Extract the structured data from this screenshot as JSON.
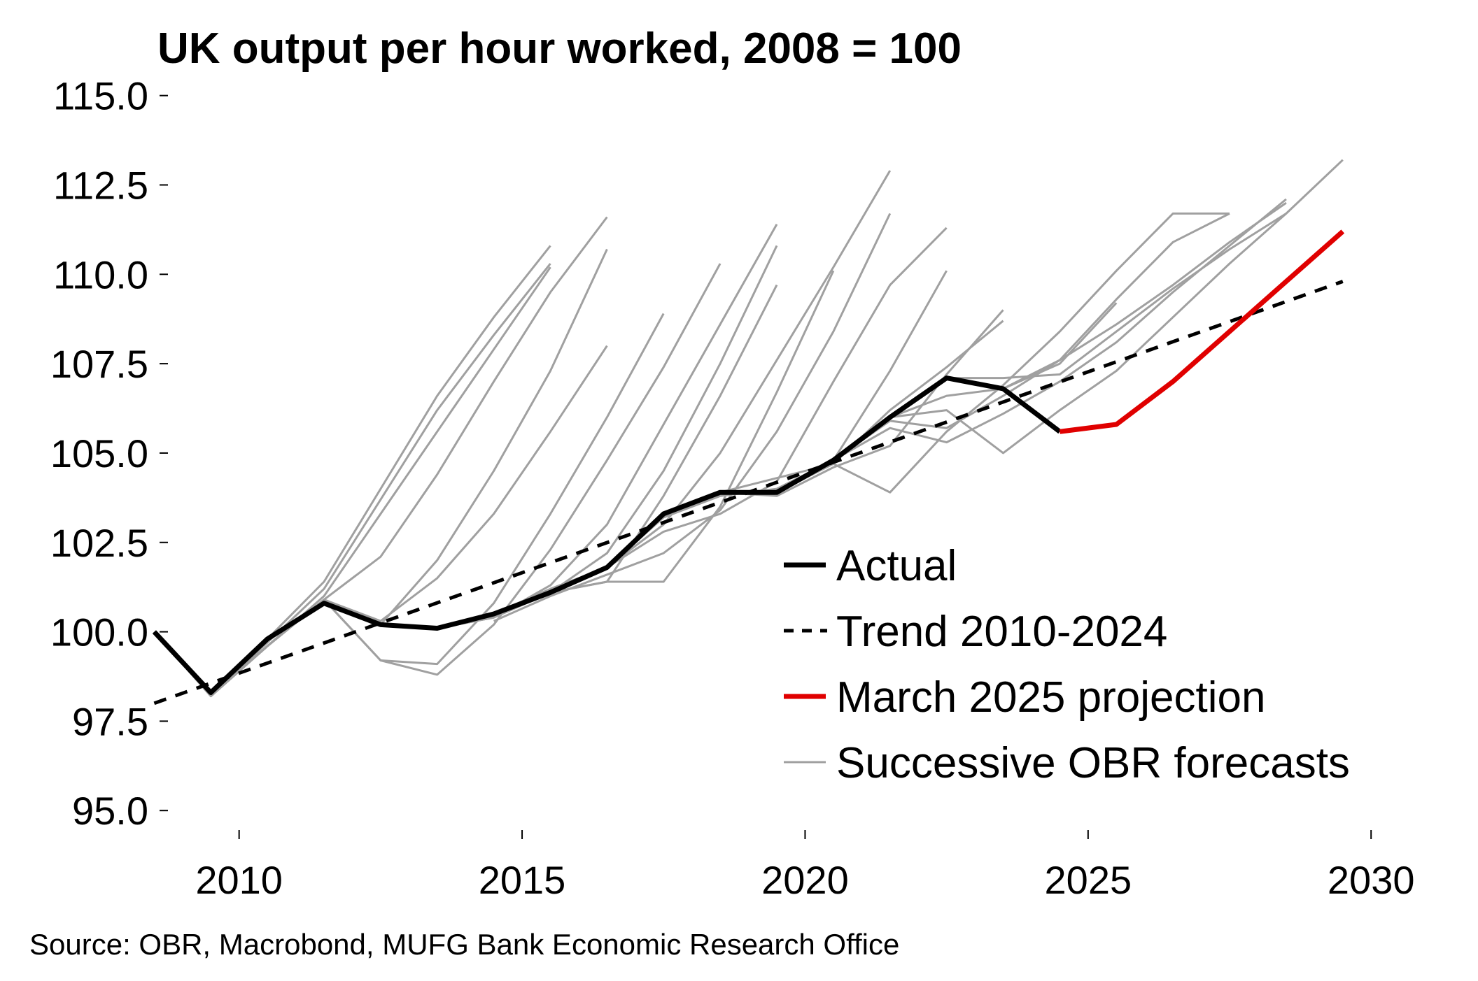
{
  "chart_data": {
    "type": "line",
    "title": "UK output per hour worked, 2008 = 100",
    "source": "Source: OBR, Macrobond, MUFG Bank Economic Research Office",
    "xlabel": "",
    "ylabel": "",
    "xlim": [
      2008.1,
      2030.9
    ],
    "ylim": [
      94.3,
      115.6
    ],
    "x_ticks": [
      2010,
      2015,
      2020,
      2025,
      2030
    ],
    "y_ticks": [
      95.0,
      97.5,
      100.0,
      102.5,
      105.0,
      107.5,
      110.0,
      112.5,
      115.0
    ],
    "legend": {
      "position": "bottom-right",
      "entries": [
        {
          "label": "Actual",
          "style": "solid",
          "color": "#000000"
        },
        {
          "label": "Trend 2010-2024",
          "style": "dashed",
          "color": "#000000"
        },
        {
          "label": "March 2025 projection",
          "style": "solid",
          "color": "#e00000"
        },
        {
          "label": "Successive OBR forecasts",
          "style": "solid",
          "color": "#a0a0a0"
        }
      ]
    },
    "series": [
      {
        "name": "Actual",
        "color": "#000000",
        "style": "solid",
        "x": [
          2008.5,
          2009.5,
          2010.5,
          2011.5,
          2012.5,
          2013.5,
          2014.5,
          2015.5,
          2016.5,
          2017.5,
          2018.5,
          2019.5,
          2020.5,
          2021.5,
          2022.5,
          2023.5,
          2024.5
        ],
        "values": [
          100.0,
          98.3,
          99.8,
          100.8,
          100.2,
          100.1,
          100.5,
          101.1,
          101.8,
          103.3,
          103.9,
          103.9,
          104.8,
          106.0,
          107.1,
          106.8,
          105.6
        ]
      },
      {
        "name": "Trend 2010-2024",
        "color": "#000000",
        "style": "dashed",
        "x": [
          2008.5,
          2029.5
        ],
        "values": [
          98.0,
          109.8
        ]
      },
      {
        "name": "March 2025 projection",
        "color": "#e00000",
        "style": "solid",
        "x": [
          2024.5,
          2025.5,
          2026.5,
          2027.5,
          2028.5,
          2029.5
        ],
        "values": [
          105.6,
          105.8,
          107.0,
          108.4,
          109.8,
          111.2
        ]
      }
    ],
    "forecasts": {
      "name": "Successive OBR forecasts",
      "color": "#a0a0a0",
      "style": "solid",
      "lines": [
        {
          "x": [
            2008.5,
            2009.5,
            2010.5,
            2011.5,
            2012.5,
            2013.5,
            2014.5,
            2015.5
          ],
          "values": [
            100.0,
            98.3,
            99.8,
            101.4,
            104.0,
            106.6,
            108.8,
            110.8
          ]
        },
        {
          "x": [
            2008.5,
            2009.5,
            2010.5,
            2011.5,
            2012.5,
            2013.5,
            2014.5,
            2015.5
          ],
          "values": [
            100.0,
            98.2,
            99.7,
            101.2,
            103.7,
            106.2,
            108.3,
            110.3
          ]
        },
        {
          "x": [
            2009.5,
            2010.5,
            2011.5,
            2012.5,
            2013.5,
            2014.5,
            2015.5
          ],
          "values": [
            98.2,
            99.6,
            101.0,
            103.3,
            105.6,
            107.9,
            110.2
          ]
        },
        {
          "x": [
            2009.5,
            2010.5,
            2011.5,
            2012.5,
            2013.5,
            2014.5,
            2015.5,
            2016.5
          ],
          "values": [
            98.2,
            99.6,
            100.9,
            102.1,
            104.4,
            107.0,
            109.5,
            111.6
          ]
        },
        {
          "x": [
            2009.5,
            2010.5,
            2011.5,
            2012.5,
            2013.5,
            2014.5,
            2015.5,
            2016.5
          ],
          "values": [
            98.2,
            99.6,
            100.9,
            100.2,
            102.0,
            104.5,
            107.3,
            110.7
          ]
        },
        {
          "x": [
            2009.5,
            2010.5,
            2011.5,
            2012.5,
            2013.5,
            2014.5,
            2015.5,
            2016.5
          ],
          "values": [
            98.2,
            99.6,
            100.9,
            100.3,
            101.5,
            103.3,
            105.6,
            108.0
          ]
        },
        {
          "x": [
            2009.5,
            2010.5,
            2011.5,
            2012.5,
            2013.5,
            2014.5,
            2015.5,
            2016.5,
            2017.5
          ],
          "values": [
            98.2,
            99.6,
            100.9,
            99.2,
            99.1,
            100.8,
            103.3,
            106.0,
            108.9
          ]
        },
        {
          "x": [
            2009.5,
            2010.5,
            2011.5,
            2012.5,
            2013.5,
            2014.5,
            2015.5,
            2016.5,
            2017.5,
            2018.5
          ],
          "values": [
            98.2,
            99.6,
            100.9,
            99.2,
            98.8,
            100.2,
            102.3,
            104.8,
            107.4,
            110.3
          ]
        },
        {
          "x": [
            2009.5,
            2010.5,
            2011.5,
            2012.5,
            2013.5,
            2014.5,
            2015.5,
            2016.5,
            2017.5,
            2018.5,
            2019.5
          ],
          "values": [
            98.2,
            99.6,
            100.9,
            100.2,
            100.1,
            100.4,
            101.3,
            103.0,
            105.8,
            108.6,
            111.4
          ]
        },
        {
          "x": [
            2009.5,
            2010.5,
            2011.5,
            2012.5,
            2013.5,
            2014.5,
            2015.5,
            2016.5,
            2017.5,
            2018.5,
            2019.5
          ],
          "values": [
            98.2,
            99.6,
            100.9,
            100.2,
            100.1,
            100.4,
            101.1,
            102.2,
            104.5,
            107.5,
            110.8
          ]
        },
        {
          "x": [
            2011.5,
            2012.5,
            2013.5,
            2014.5,
            2015.5,
            2016.5,
            2017.5,
            2018.5,
            2019.5
          ],
          "values": [
            100.9,
            100.2,
            100.1,
            100.5,
            101.1,
            101.4,
            103.8,
            106.6,
            109.7
          ]
        },
        {
          "x": [
            2011.5,
            2012.5,
            2013.5,
            2014.5,
            2015.5,
            2016.5,
            2017.5,
            2018.5,
            2019.5,
            2020.5
          ],
          "values": [
            100.9,
            100.2,
            100.1,
            100.4,
            101.1,
            101.4,
            101.4,
            103.5,
            106.7,
            110.1
          ]
        },
        {
          "x": [
            2013.5,
            2014.5,
            2015.5,
            2016.5,
            2017.5,
            2018.5,
            2019.5,
            2020.5,
            2021.5
          ],
          "values": [
            100.1,
            100.5,
            101.2,
            101.8,
            103.0,
            105.0,
            107.6,
            110.2,
            112.9
          ]
        },
        {
          "x": [
            2014.5,
            2015.5,
            2016.5,
            2017.5,
            2018.5,
            2019.5,
            2020.5,
            2021.5
          ],
          "values": [
            100.3,
            101.0,
            101.6,
            102.2,
            103.4,
            105.6,
            108.4,
            111.7
          ]
        },
        {
          "x": [
            2015.5,
            2016.5,
            2017.5,
            2018.5,
            2019.5,
            2020.5,
            2021.5,
            2022.5
          ],
          "values": [
            101.1,
            101.8,
            102.8,
            103.3,
            104.2,
            107.0,
            109.7,
            111.3
          ]
        },
        {
          "x": [
            2016.5,
            2017.5,
            2018.5,
            2019.5,
            2020.5,
            2021.5,
            2022.5
          ],
          "values": [
            101.8,
            103.2,
            103.8,
            104.0,
            104.8,
            107.3,
            110.1
          ]
        },
        {
          "x": [
            2017.5,
            2018.5,
            2019.5,
            2020.5,
            2021.5,
            2022.5,
            2023.5
          ],
          "values": [
            103.3,
            103.9,
            103.8,
            104.6,
            105.2,
            107.2,
            109.0
          ]
        },
        {
          "x": [
            2018.5,
            2019.5,
            2020.5,
            2021.5,
            2022.5,
            2023.5
          ],
          "values": [
            103.9,
            104.3,
            104.7,
            106.2,
            107.4,
            108.7
          ]
        },
        {
          "x": [
            2019.5,
            2020.5,
            2021.5,
            2022.5,
            2023.5,
            2024.5,
            2025.5,
            2026.5,
            2027.5
          ],
          "values": [
            103.9,
            104.7,
            103.9,
            105.6,
            106.9,
            108.4,
            110.1,
            111.7,
            111.7
          ]
        },
        {
          "x": [
            2020.5,
            2021.5,
            2022.5,
            2023.5,
            2024.5,
            2025.5,
            2026.5,
            2027.5
          ],
          "values": [
            104.8,
            105.9,
            105.7,
            106.6,
            107.6,
            109.3,
            110.9,
            111.7
          ]
        },
        {
          "x": [
            2020.5,
            2021.5,
            2022.5,
            2023.5,
            2024.5,
            2025.5,
            2026.5,
            2027.5,
            2028.5
          ],
          "values": [
            104.8,
            105.7,
            105.3,
            106.1,
            107.0,
            108.1,
            109.5,
            110.8,
            112.1
          ]
        },
        {
          "x": [
            2021.5,
            2022.5,
            2023.5,
            2024.5,
            2025.5,
            2026.5,
            2027.5,
            2028.5,
            2029.5
          ],
          "values": [
            106.0,
            106.2,
            105.0,
            106.2,
            107.3,
            108.8,
            110.3,
            111.7,
            113.2
          ]
        },
        {
          "x": [
            2021.5,
            2022.5,
            2023.5,
            2024.5,
            2025.5,
            2026.5,
            2027.5,
            2028.5
          ],
          "values": [
            106.0,
            107.1,
            107.1,
            107.2,
            108.4,
            109.6,
            110.7,
            111.7
          ]
        },
        {
          "x": [
            2021.5,
            2022.5,
            2023.5,
            2024.5,
            2025.5,
            2026.5,
            2027.5,
            2028.5
          ],
          "values": [
            106.0,
            106.6,
            106.8,
            107.6,
            108.6,
            109.7,
            110.9,
            112.0
          ]
        },
        {
          "x": [
            2022.5,
            2023.5,
            2024.5,
            2025.5
          ],
          "values": [
            107.1,
            106.8,
            107.5,
            109.2
          ]
        }
      ]
    }
  }
}
